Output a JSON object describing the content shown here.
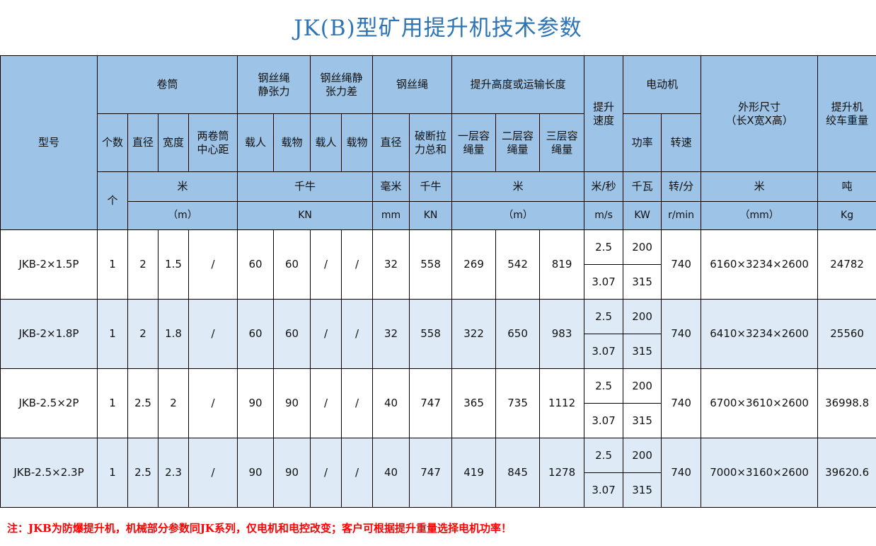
{
  "title": "JK(B)型矿用提升机技术参数",
  "header": {
    "model": "型号",
    "drum": "卷筒",
    "rope_static_tension": "钢丝绳\n静张力",
    "rope_static_tension_diff": "钢丝绳静\n张力差",
    "rope": "钢丝绳",
    "lift_height": "提升高度或运输长度",
    "lift_speed": "提升\n速度",
    "motor": "电动机",
    "dimensions": "外形尺寸\n（长X宽X高）",
    "weight": "提升机\n绞车重量",
    "count": "个数",
    "drum_diameter": "直径",
    "drum_width": "宽度",
    "drum_center_distance": "两卷筒\n中心距",
    "manned": "载人",
    "cargo": "载物",
    "manned2": "载人",
    "cargo2": "载物",
    "rope_diameter": "直径",
    "breaking_force": "破断拉\n力总和",
    "layer1": "一层容\n绳量",
    "layer2": "二层容\n绳量",
    "layer3": "三层容\n绳量",
    "power": "功率",
    "rotation": "转速",
    "unit_count": "个",
    "unit_m_cn": "米",
    "unit_m_en": "（m）",
    "unit_kn_cn": "千牛",
    "unit_kn_en": "KN",
    "unit_mm_cn": "毫米",
    "unit_mm_en": "mm",
    "unit_kn2_cn": "千牛",
    "unit_kn2_en": "KN",
    "unit_height_cn": "米",
    "unit_height_en": "（m）",
    "unit_speed_cn": "米/秒",
    "unit_speed_en": "m/s",
    "unit_power_cn": "千瓦",
    "unit_power_en": "KW",
    "unit_rot_cn": "转/分",
    "unit_rot_en": "r/min",
    "unit_dim_cn": "米",
    "unit_dim_en": "（mm）",
    "unit_weight_cn": "吨",
    "unit_weight_en": "Kg"
  },
  "rows": [
    {
      "model": "JKB-2×1.5P",
      "count": "1",
      "diameter": "2",
      "width": "1.5",
      "center": "/",
      "manned": "60",
      "cargo": "60",
      "manned_diff": "/",
      "cargo_diff": "/",
      "rope_d": "32",
      "breaking": "558",
      "l1": "269",
      "l2": "542",
      "l3": "819",
      "speeds": [
        "2.5",
        "3.07"
      ],
      "powers": [
        "200",
        "315"
      ],
      "rpm": "740",
      "dims": "6160×3234×2600",
      "weight": "24782"
    },
    {
      "model": "JKB-2×1.8P",
      "count": "1",
      "diameter": "2",
      "width": "1.8",
      "center": "/",
      "manned": "60",
      "cargo": "60",
      "manned_diff": "/",
      "cargo_diff": "/",
      "rope_d": "32",
      "breaking": "558",
      "l1": "322",
      "l2": "650",
      "l3": "983",
      "speeds": [
        "2.5",
        "3.07"
      ],
      "powers": [
        "200",
        "315"
      ],
      "rpm": "740",
      "dims": "6410×3234×2600",
      "weight": "25560"
    },
    {
      "model": "JKB-2.5×2P",
      "count": "1",
      "diameter": "2.5",
      "width": "2",
      "center": "/",
      "manned": "90",
      "cargo": "90",
      "manned_diff": "/",
      "cargo_diff": "/",
      "rope_d": "40",
      "breaking": "747",
      "l1": "365",
      "l2": "735",
      "l3": "1112",
      "speeds": [
        "2.5",
        "3.07"
      ],
      "powers": [
        "200",
        "315"
      ],
      "rpm": "740",
      "dims": "6700×3610×2600",
      "weight": "36998.8"
    },
    {
      "model": "JKB-2.5×2.3P",
      "count": "1",
      "diameter": "2.5",
      "width": "2.3",
      "center": "/",
      "manned": "90",
      "cargo": "90",
      "manned_diff": "/",
      "cargo_diff": "/",
      "rope_d": "40",
      "breaking": "747",
      "l1": "419",
      "l2": "845",
      "l3": "1278",
      "speeds": [
        "2.5",
        "3.07"
      ],
      "powers": [
        "200",
        "315"
      ],
      "rpm": "740",
      "dims": "7000×3160×2600",
      "weight": "39620.6"
    }
  ],
  "note": "注：JKB为防爆提升机，机械部分参数同JK系列，仅电机和电控改变；客户可根据提升重量选择电机功率！",
  "colors": {
    "header_bg": "#9dc3e6",
    "alt_row_bg": "#deebf7",
    "title": "#2e75b6",
    "note": "#ff0000"
  }
}
